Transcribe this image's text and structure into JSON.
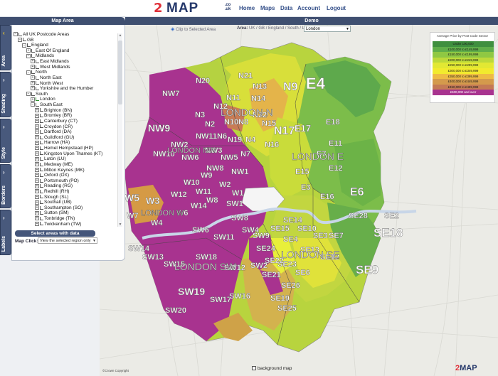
{
  "header": {
    "logo_mark": "2",
    "logo_word": "MAP",
    "logo_tld": ".co .uk",
    "nav": [
      "Home",
      "Maps",
      "Data",
      "Account",
      "Logout"
    ]
  },
  "left_panel": {
    "title": "Map Area",
    "tabs": [
      {
        "label": "Area",
        "active": true
      },
      {
        "label": "Shading",
        "active": false
      },
      {
        "label": "Style",
        "active": false
      },
      {
        "label": "Borders",
        "active": false
      },
      {
        "label": "Labels",
        "active": false
      }
    ],
    "tree": [
      {
        "label": "All UK Postcode Areas",
        "depth": 0,
        "toggle": "minus",
        "checked": false
      },
      {
        "label": "GB",
        "depth": 1,
        "toggle": "minus",
        "checked": false
      },
      {
        "label": "England",
        "depth": 2,
        "toggle": "minus",
        "checked": false
      },
      {
        "label": "East Of England",
        "depth": 3,
        "toggle": "plus",
        "checked": false
      },
      {
        "label": "Midlands",
        "depth": 3,
        "toggle": "minus",
        "checked": false
      },
      {
        "label": "East Midlands",
        "depth": 4,
        "toggle": "plus",
        "checked": false
      },
      {
        "label": "West Midlands",
        "depth": 4,
        "toggle": "plus",
        "checked": false
      },
      {
        "label": "North",
        "depth": 3,
        "toggle": "minus",
        "checked": false
      },
      {
        "label": "North East",
        "depth": 4,
        "toggle": "plus",
        "checked": false
      },
      {
        "label": "North West",
        "depth": 4,
        "toggle": "plus",
        "checked": false
      },
      {
        "label": "Yorkshire and the Humber",
        "depth": 4,
        "toggle": "plus",
        "checked": false
      },
      {
        "label": "South",
        "depth": 3,
        "toggle": "minus",
        "checked": false
      },
      {
        "label": "London",
        "depth": 4,
        "toggle": "plus",
        "checked": true
      },
      {
        "label": "South East",
        "depth": 4,
        "toggle": "minus",
        "checked": false
      },
      {
        "label": "Brighton (BN)",
        "depth": 5,
        "toggle": "plus",
        "checked": false
      },
      {
        "label": "Bromley (BR)",
        "depth": 5,
        "toggle": "plus",
        "checked": false
      },
      {
        "label": "Canterbury (CT)",
        "depth": 5,
        "toggle": "plus",
        "checked": false
      },
      {
        "label": "Croydon (CR)",
        "depth": 5,
        "toggle": "plus",
        "checked": false
      },
      {
        "label": "Dartford (DA)",
        "depth": 5,
        "toggle": "plus",
        "checked": false
      },
      {
        "label": "Guildford (GU)",
        "depth": 5,
        "toggle": "plus",
        "checked": false
      },
      {
        "label": "Harrow (HA)",
        "depth": 5,
        "toggle": "plus",
        "checked": false
      },
      {
        "label": "Hemel Hempstead (HP)",
        "depth": 5,
        "toggle": "plus",
        "checked": false
      },
      {
        "label": "Kingston Upon Thames (KT)",
        "depth": 5,
        "toggle": "plus",
        "checked": false
      },
      {
        "label": "Luton (LU)",
        "depth": 5,
        "toggle": "plus",
        "checked": false
      },
      {
        "label": "Medway (ME)",
        "depth": 5,
        "toggle": "plus",
        "checked": false
      },
      {
        "label": "Milton Keynes (MK)",
        "depth": 5,
        "toggle": "plus",
        "checked": false
      },
      {
        "label": "Oxford (OX)",
        "depth": 5,
        "toggle": "plus",
        "checked": false
      },
      {
        "label": "Portsmouth (PO)",
        "depth": 5,
        "toggle": "plus",
        "checked": false
      },
      {
        "label": "Reading (RG)",
        "depth": 5,
        "toggle": "plus",
        "checked": false
      },
      {
        "label": "Redhill (RH)",
        "depth": 5,
        "toggle": "plus",
        "checked": false
      },
      {
        "label": "Slough (SL)",
        "depth": 5,
        "toggle": "plus",
        "checked": false
      },
      {
        "label": "Southall (UB)",
        "depth": 5,
        "toggle": "plus",
        "checked": false
      },
      {
        "label": "Southampton (SO)",
        "depth": 5,
        "toggle": "plus",
        "checked": false
      },
      {
        "label": "Sutton (SM)",
        "depth": 5,
        "toggle": "plus",
        "checked": false
      },
      {
        "label": "Tonbridge (TN)",
        "depth": 5,
        "toggle": "plus",
        "checked": false
      },
      {
        "label": "Twickenham (TW)",
        "depth": 5,
        "toggle": "plus",
        "checked": false
      }
    ],
    "select_button": "Select areas with data",
    "map_click_label": "Map Click:",
    "map_click_value": "View the selected region only"
  },
  "main": {
    "title": "Demo",
    "clip_label": "Clip to Selected Area",
    "area_prefix": "Area:",
    "area_path": "UK / GB / England / South / London",
    "area_select": "London",
    "background_map_label": "background map",
    "copyright": "©Crown Copyright"
  },
  "legend": {
    "title": "Average Price by Post Code Sector",
    "rows": [
      {
        "label": "Under 100,000",
        "color": "#3f8f3f"
      },
      {
        "label": "£100,000   to   £149,999",
        "color": "#5fae4a"
      },
      {
        "label": "£150,000   to   £199,999",
        "color": "#8fc843"
      },
      {
        "label": "£200,000   to   £249,999",
        "color": "#bcd93a"
      },
      {
        "label": "£250,000   to   £299,999",
        "color": "#e2e833"
      },
      {
        "label": "£300,000   to   £349,999",
        "color": "#f2ea2e"
      },
      {
        "label": "£350,000   to   £399,999",
        "color": "#eebb44"
      },
      {
        "label": "£400,000   to   £449,999",
        "color": "#d49a4c"
      },
      {
        "label": "£450,000   to   £499,999",
        "color": "#c47a55"
      },
      {
        "label": "£500,000 and over",
        "color": "#a8338f"
      }
    ]
  },
  "map": {
    "district_labels": [
      "E4",
      "N9",
      "N21",
      "N20",
      "N13",
      "N11",
      "N14",
      "N12",
      "NW7",
      "N3",
      "N17",
      "N10",
      "N22",
      "N2",
      "N15",
      "E17",
      "E18",
      "E11",
      "E15",
      "E3",
      "E16",
      "E6",
      "E12",
      "E7",
      "N4",
      "N19",
      "N16",
      "N7",
      "N8",
      "N6",
      "NW9",
      "NW3",
      "NW5",
      "NW6",
      "NW2",
      "NW10",
      "NW11",
      "NW8",
      "NW1",
      "W5",
      "W3",
      "W4",
      "W12",
      "W6",
      "W2",
      "W9",
      "W10",
      "W11",
      "W14",
      "W8",
      "W1",
      "W7",
      "SE18",
      "SE9",
      "SE28",
      "SE2",
      "SE3",
      "SE12",
      "SE10",
      "SE7",
      "SE13",
      "SE6",
      "SE26",
      "SE25",
      "SE19",
      "SE23",
      "SE4",
      "SE22",
      "SE14",
      "SE15",
      "SE24",
      "SE21",
      "SW19",
      "SW15",
      "SW18",
      "SW17",
      "SW16",
      "SW20",
      "SW13",
      "SW14",
      "SW4",
      "SW2",
      "SW12",
      "SW11",
      "SW8",
      "SW9",
      "SW6",
      "SW1"
    ],
    "district_names": [
      "LONDON N",
      "LONDON E",
      "LONDON NW",
      "LONDON W",
      "LONDON SW",
      "LONDON SE"
    ]
  }
}
